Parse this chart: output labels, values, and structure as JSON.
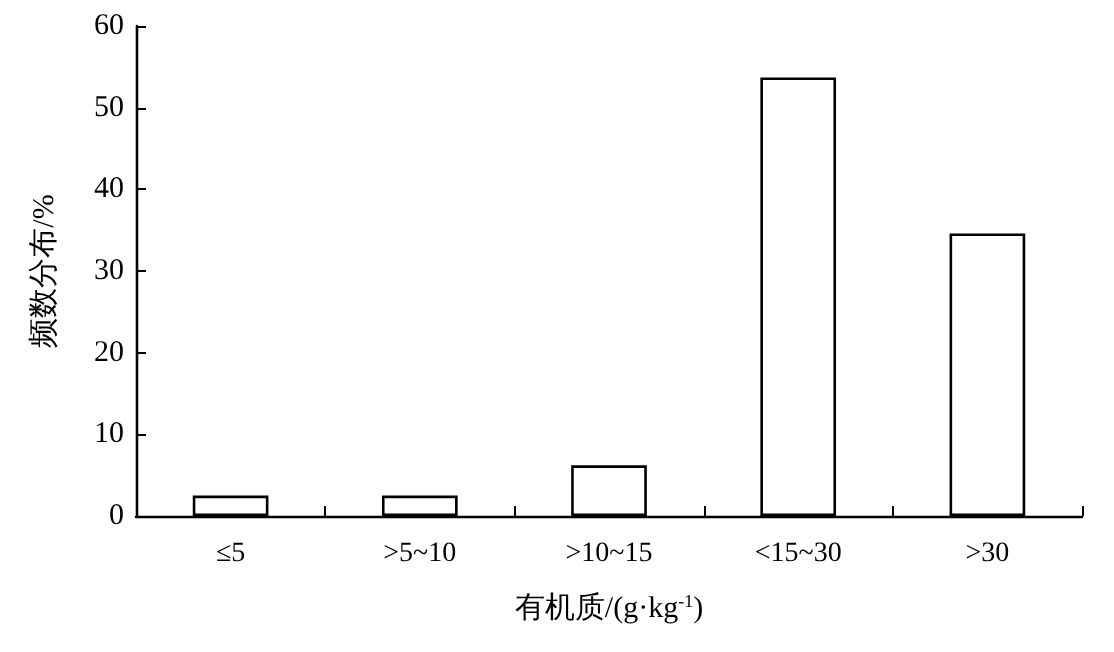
{
  "chart_data": {
    "type": "bar",
    "xlabel": "有机质/(g·kg$^{-1}$)",
    "ylabel": "频数分布/%",
    "categories": [
      "≤5",
      ">5~10",
      ">10~15",
      "<15~30",
      ">30"
    ],
    "values": [
      2.5,
      2.5,
      6.2,
      53.7,
      34.6
    ],
    "color": "#ffffff",
    "ylim": [
      0,
      60
    ],
    "yticks": [
      0,
      10,
      20,
      30,
      40,
      50,
      60
    ],
    "grid": false
  }
}
